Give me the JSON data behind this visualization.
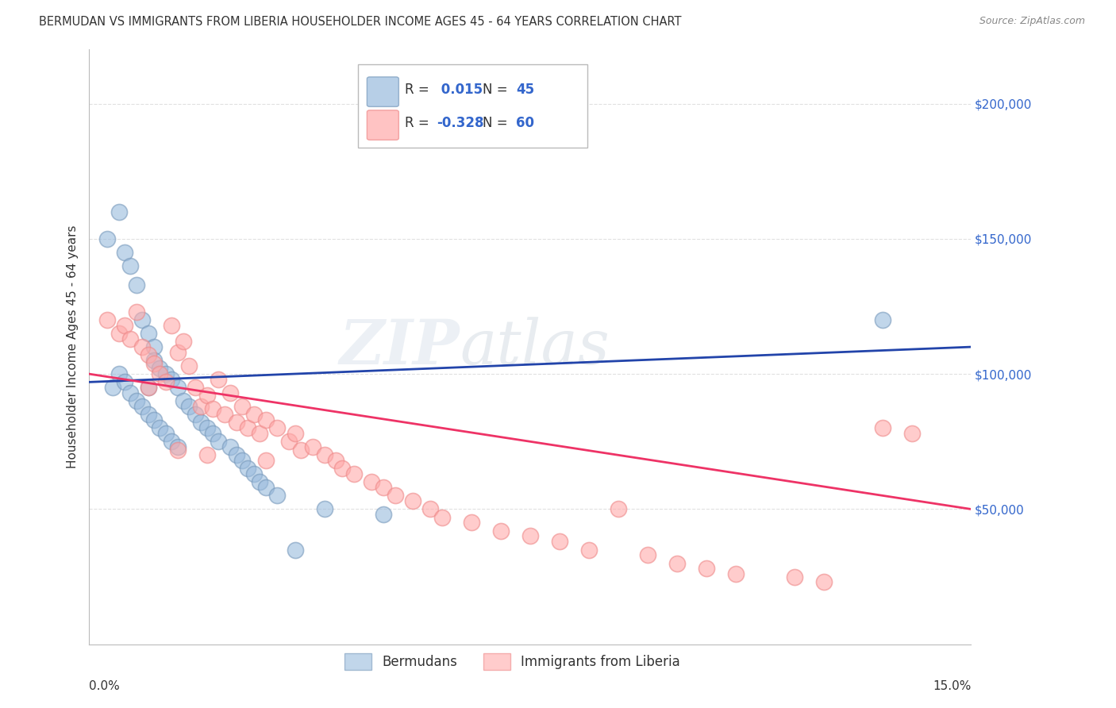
{
  "title": "BERMUDAN VS IMMIGRANTS FROM LIBERIA HOUSEHOLDER INCOME AGES 45 - 64 YEARS CORRELATION CHART",
  "source": "Source: ZipAtlas.com",
  "ylabel": "Householder Income Ages 45 - 64 years",
  "watermark_zip": "ZIP",
  "watermark_atlas": "atlas",
  "blue_label": "Bermudans",
  "pink_label": "Immigrants from Liberia",
  "blue_R": 0.015,
  "blue_N": 45,
  "pink_R": -0.328,
  "pink_N": 60,
  "blue_color": "#99BBDD",
  "pink_color": "#FFAAAA",
  "blue_edge": "#7799BB",
  "pink_edge": "#EE8888",
  "blue_line_color": "#2244AA",
  "pink_line_color": "#EE3366",
  "xmin": 0.0,
  "xmax": 15.0,
  "ymin": 0,
  "ymax": 220000,
  "ytick_values": [
    50000,
    100000,
    150000,
    200000
  ],
  "ytick_labels": [
    "$50,000",
    "$100,000",
    "$150,000",
    "$200,000"
  ],
  "bg_color": "#FFFFFF",
  "grid_color": "#DDDDDD",
  "number_color": "#3366CC",
  "label_color": "#333333",
  "title_fontsize": 10.5,
  "source_fontsize": 9,
  "tick_fontsize": 11,
  "blue_x": [
    0.3,
    0.4,
    0.5,
    0.5,
    0.6,
    0.6,
    0.7,
    0.7,
    0.8,
    0.8,
    0.9,
    0.9,
    1.0,
    1.0,
    1.0,
    1.1,
    1.1,
    1.1,
    1.2,
    1.2,
    1.3,
    1.3,
    1.4,
    1.4,
    1.5,
    1.5,
    1.6,
    1.7,
    1.8,
    1.9,
    2.0,
    2.1,
    2.2,
    2.4,
    2.5,
    2.6,
    2.7,
    2.8,
    2.9,
    3.0,
    3.2,
    3.5,
    4.0,
    5.0,
    13.5
  ],
  "blue_y": [
    150000,
    95000,
    160000,
    100000,
    145000,
    97000,
    140000,
    93000,
    133000,
    90000,
    120000,
    88000,
    115000,
    95000,
    85000,
    110000,
    105000,
    83000,
    102000,
    80000,
    100000,
    78000,
    98000,
    75000,
    95000,
    73000,
    90000,
    88000,
    85000,
    82000,
    80000,
    78000,
    75000,
    73000,
    70000,
    68000,
    65000,
    63000,
    60000,
    58000,
    55000,
    35000,
    50000,
    48000,
    120000
  ],
  "pink_x": [
    0.3,
    0.5,
    0.6,
    0.7,
    0.8,
    0.9,
    1.0,
    1.0,
    1.1,
    1.2,
    1.3,
    1.4,
    1.5,
    1.6,
    1.7,
    1.8,
    1.9,
    2.0,
    2.1,
    2.2,
    2.3,
    2.4,
    2.5,
    2.6,
    2.7,
    2.8,
    2.9,
    3.0,
    3.2,
    3.4,
    3.5,
    3.6,
    3.8,
    4.0,
    4.2,
    4.3,
    4.5,
    4.8,
    5.0,
    5.2,
    5.5,
    5.8,
    6.0,
    6.5,
    7.0,
    7.5,
    8.0,
    8.5,
    9.0,
    9.5,
    10.0,
    10.5,
    11.0,
    12.0,
    12.5,
    13.5,
    14.0,
    1.5,
    2.0,
    3.0
  ],
  "pink_y": [
    120000,
    115000,
    118000,
    113000,
    123000,
    110000,
    107000,
    95000,
    104000,
    100000,
    97000,
    118000,
    108000,
    112000,
    103000,
    95000,
    88000,
    92000,
    87000,
    98000,
    85000,
    93000,
    82000,
    88000,
    80000,
    85000,
    78000,
    83000,
    80000,
    75000,
    78000,
    72000,
    73000,
    70000,
    68000,
    65000,
    63000,
    60000,
    58000,
    55000,
    53000,
    50000,
    47000,
    45000,
    42000,
    40000,
    38000,
    35000,
    50000,
    33000,
    30000,
    28000,
    26000,
    25000,
    23000,
    80000,
    78000,
    72000,
    70000,
    68000
  ]
}
